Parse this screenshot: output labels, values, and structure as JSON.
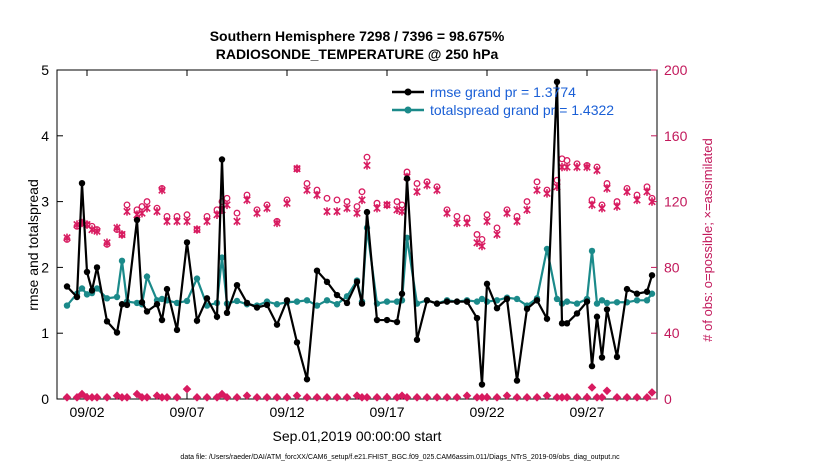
{
  "chart_data": {
    "type": "line",
    "title": "Southern Hemisphere 7298 / 7396 = 98.675%",
    "subtitle": "RADIOSONDE_TEMPERATURE @ 250 hPa",
    "xlabel": "Sep.01,2019 00:00:00 start",
    "ylabel": "rmse and totalspread",
    "ylabel_right": "# of obs: o=possible; ×=assimilated",
    "ylim": [
      0,
      5
    ],
    "ylim_right": [
      0,
      200
    ],
    "xlim": [
      0.5,
      30.5
    ],
    "x_ticks": [
      {
        "x": 2,
        "label": "09/02"
      },
      {
        "x": 7,
        "label": "09/07"
      },
      {
        "x": 12,
        "label": "09/12"
      },
      {
        "x": 17,
        "label": "09/17"
      },
      {
        "x": 22,
        "label": "09/22"
      },
      {
        "x": 27,
        "label": "09/27"
      }
    ],
    "y_ticks": [
      "0",
      "1",
      "2",
      "3",
      "4",
      "5"
    ],
    "y_ticks_right": [
      "0",
      "40",
      "80",
      "120",
      "160",
      "200"
    ],
    "footer": "data file: /Users/raeder/DAI/ATM_forcXX/CAM6_setup/f.e21.FHIST_BGC.f09_025.CAM6assim.011/Diags_NTrS_2019-09/obs_diag_output.nc",
    "x": [
      1.0,
      1.5,
      1.75,
      2.0,
      2.25,
      2.5,
      3.0,
      3.5,
      3.75,
      4.0,
      4.5,
      4.75,
      5.0,
      5.5,
      5.75,
      6.0,
      6.5,
      7.0,
      7.5,
      8.0,
      8.5,
      8.75,
      9.0,
      9.5,
      10.0,
      10.5,
      11.0,
      11.5,
      12.0,
      12.5,
      13.0,
      13.5,
      14.0,
      14.5,
      15.0,
      15.5,
      15.75,
      16.0,
      16.5,
      17.0,
      17.5,
      17.75,
      18.0,
      18.5,
      19.0,
      19.5,
      20.0,
      20.5,
      21.0,
      21.5,
      21.75,
      22.0,
      22.5,
      23.0,
      23.5,
      24.0,
      24.5,
      25.0,
      25.5,
      25.75,
      26.0,
      26.5,
      27.0,
      27.25,
      27.5,
      27.75,
      28.0,
      28.5,
      29.0,
      29.5,
      30.0,
      30.25
    ],
    "series": [
      {
        "name": "rmse",
        "legend": "rmse grand pr = 1.3774",
        "color": "#000000",
        "values": [
          1.71,
          1.55,
          3.28,
          1.93,
          1.65,
          2.0,
          1.18,
          1.01,
          1.44,
          1.43,
          2.72,
          1.47,
          1.33,
          1.44,
          1.2,
          1.67,
          1.05,
          2.38,
          1.19,
          1.53,
          1.25,
          3.64,
          1.31,
          1.73,
          1.46,
          1.39,
          1.43,
          1.13,
          1.5,
          0.86,
          0.3,
          1.95,
          1.78,
          1.58,
          1.46,
          1.78,
          1.45,
          2.84,
          1.2,
          1.2,
          1.17,
          1.6,
          3.35,
          0.9,
          1.5,
          1.45,
          1.48,
          1.48,
          1.48,
          1.23,
          0.22,
          1.75,
          1.38,
          1.52,
          0.28,
          1.37,
          1.5,
          1.22,
          4.82,
          1.15,
          1.15,
          1.3,
          1.48,
          0.5,
          1.25,
          0.63,
          1.36,
          0.64,
          1.67,
          1.6,
          1.63,
          1.88
        ]
      },
      {
        "name": "totalspread",
        "legend": "totalspread grand pr = 1.4322",
        "color": "#1b8a8a",
        "values": [
          1.42,
          1.6,
          1.68,
          1.59,
          1.61,
          1.68,
          1.53,
          1.55,
          2.1,
          1.48,
          1.46,
          1.44,
          1.86,
          1.5,
          1.52,
          1.5,
          1.46,
          1.49,
          1.83,
          1.42,
          1.46,
          2.15,
          1.45,
          1.49,
          1.44,
          1.42,
          1.48,
          1.44,
          1.47,
          1.48,
          1.5,
          1.42,
          1.5,
          1.44,
          1.56,
          1.8,
          1.48,
          2.6,
          1.45,
          1.48,
          1.48,
          1.5,
          2.45,
          1.45,
          1.5,
          1.45,
          1.5,
          1.48,
          1.5,
          1.48,
          1.52,
          1.48,
          1.5,
          1.54,
          1.52,
          1.42,
          1.53,
          2.28,
          1.52,
          1.45,
          1.48,
          1.45,
          1.52,
          2.25,
          1.45,
          1.5,
          1.46,
          1.47,
          1.47,
          1.5,
          1.5,
          1.6
        ]
      },
      {
        "name": "obs_possible",
        "color": "#d81b60",
        "marker": "o",
        "values": [
          97,
          105,
          107,
          106,
          105,
          103,
          94,
          103,
          100,
          118,
          115,
          117,
          120,
          116,
          128,
          111,
          111,
          112,
          103,
          111,
          115,
          120,
          122,
          113,
          124,
          115,
          118,
          108,
          121,
          140,
          131,
          127,
          122,
          121,
          120,
          117,
          126,
          147,
          119,
          118,
          120,
          118,
          138,
          131,
          132,
          129,
          115,
          111,
          110,
          100,
          97,
          112,
          104,
          115,
          111,
          120,
          132,
          127,
          133,
          146,
          145,
          143,
          142,
          121,
          141,
          118,
          131,
          120,
          128,
          124,
          129,
          122
        ]
      },
      {
        "name": "obs_assimilated",
        "color": "#d81b60",
        "marker": "x",
        "values": [
          98,
          106,
          107,
          106,
          103,
          102,
          95,
          104,
          100,
          114,
          112,
          113,
          116,
          114,
          127,
          108,
          108,
          108,
          103,
          108,
          112,
          115,
          118,
          108,
          121,
          113,
          116,
          107,
          119,
          140,
          127,
          124,
          114,
          114,
          116,
          113,
          121,
          142,
          116,
          118,
          115,
          114,
          135,
          126,
          130,
          127,
          113,
          107,
          107,
          95,
          93,
          108,
          100,
          113,
          108,
          115,
          127,
          125,
          129,
          141,
          141,
          141,
          141,
          118,
          139,
          116,
          128,
          117,
          126,
          121,
          126,
          120
        ]
      },
      {
        "name": "obs_rejected_near_zero",
        "color": "#d81b60",
        "marker": "diamond",
        "values": [
          1,
          1,
          3,
          1,
          1,
          1,
          1,
          2,
          1,
          1,
          3,
          1,
          1,
          2,
          1,
          1,
          1,
          6,
          1,
          1,
          1,
          3,
          1,
          1,
          2,
          1,
          1,
          1,
          1,
          2,
          1,
          1,
          1,
          1,
          1,
          2,
          1,
          1,
          1,
          1,
          1,
          2,
          1,
          1,
          1,
          1,
          1,
          1,
          2,
          1,
          1,
          1,
          1,
          2,
          1,
          1,
          1,
          2,
          1,
          1,
          1,
          1,
          1,
          7,
          1,
          1,
          5,
          1,
          1,
          1,
          1,
          4
        ]
      }
    ]
  }
}
